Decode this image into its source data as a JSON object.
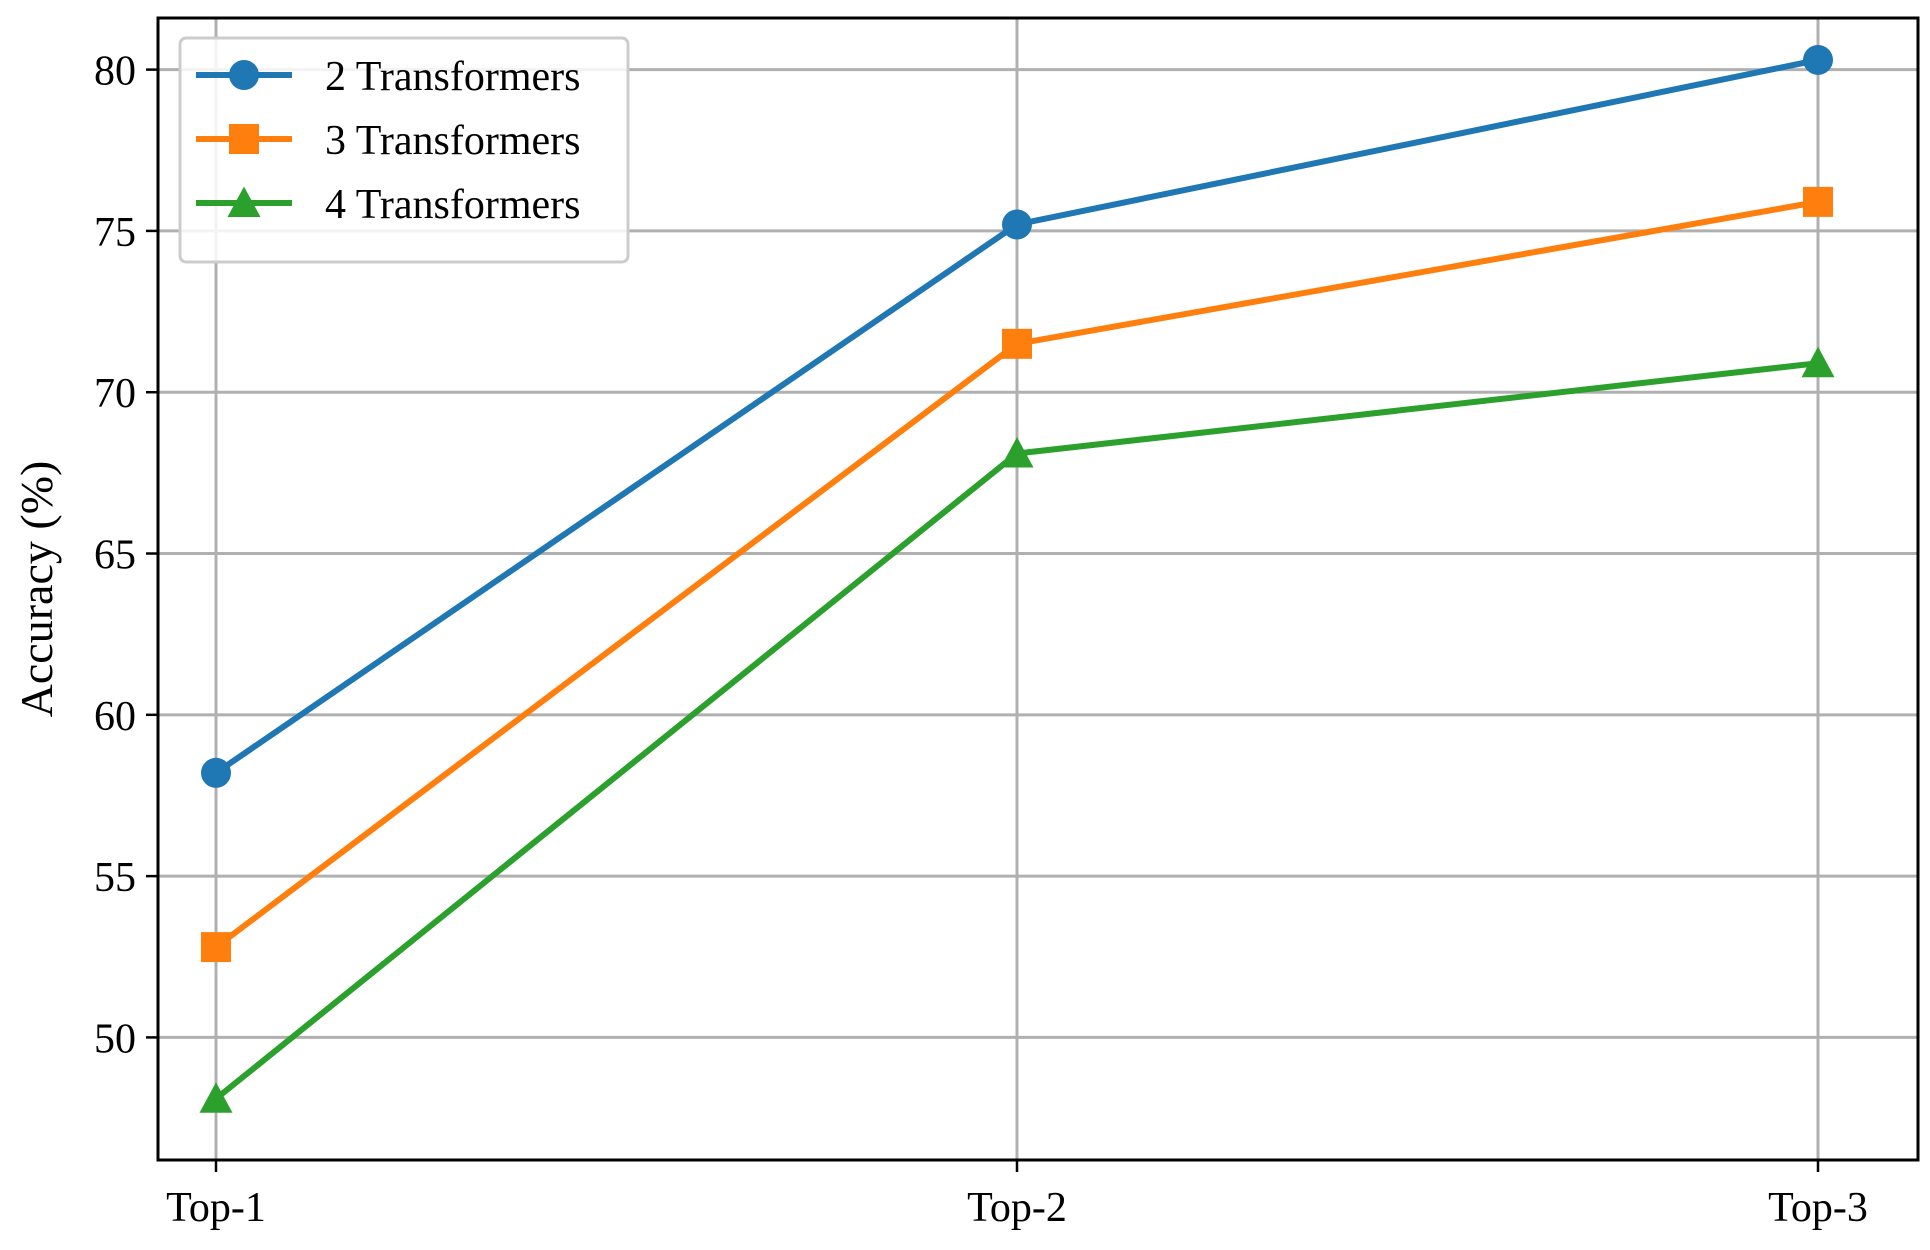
{
  "chart_data": {
    "type": "line",
    "title": "",
    "xlabel": "",
    "ylabel": "Accuracy (%)",
    "categories": [
      "Top-1",
      "Top-2",
      "Top-3"
    ],
    "ylim": [
      46.2,
      81.6
    ],
    "yticks": [
      50,
      55,
      60,
      65,
      70,
      75,
      80
    ],
    "grid": true,
    "legend_position": "top-left",
    "series": [
      {
        "name": "2 Transformers",
        "values": [
          58.2,
          75.2,
          80.3
        ],
        "color": "#1f77b4",
        "marker": "circle"
      },
      {
        "name": "3 Transformers",
        "values": [
          52.8,
          71.5,
          75.9
        ],
        "color": "#ff7f0e",
        "marker": "square"
      },
      {
        "name": "4 Transformers",
        "values": [
          48.1,
          68.1,
          70.9
        ],
        "color": "#2ca02c",
        "marker": "triangle"
      }
    ]
  }
}
